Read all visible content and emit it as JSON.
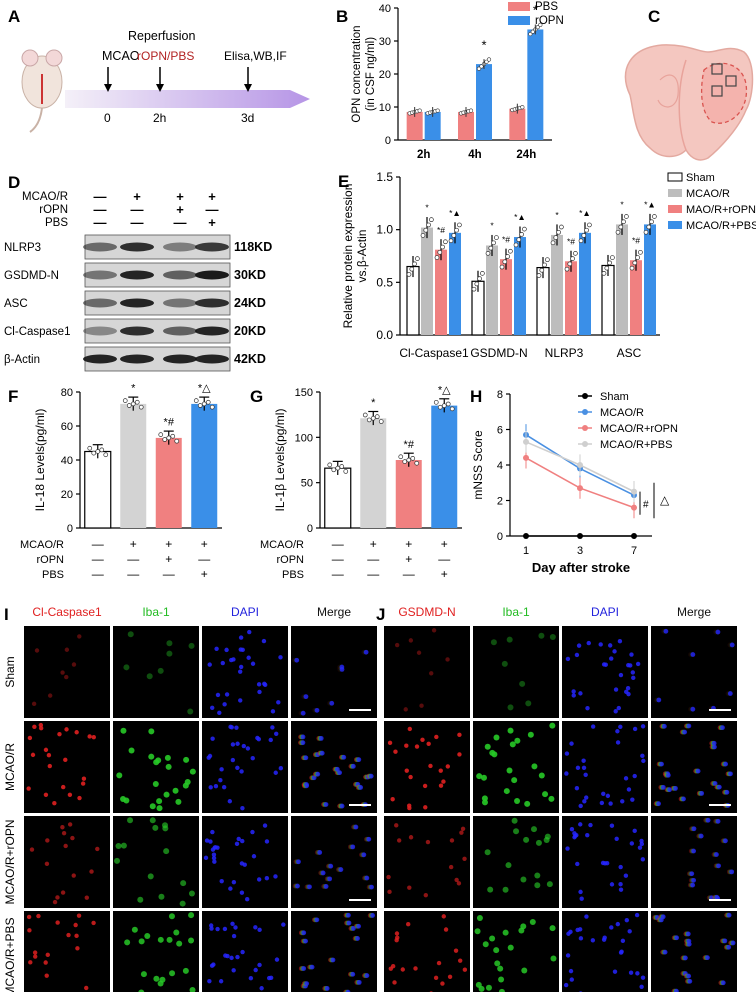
{
  "panels": {
    "A": {
      "label": "A",
      "reperfusion": "Reperfusion",
      "mcao": "MCAO",
      "treatment": "rOPN/PBS",
      "assays": "Elisa,WB,IF",
      "t0": "0",
      "t1": "2h",
      "t2": "3d"
    },
    "B": {
      "label": "B"
    },
    "C": {
      "label": "C"
    },
    "D": {
      "label": "D",
      "row_labels": [
        "MCAO/R",
        "rOPN",
        "PBS"
      ],
      "signs": [
        [
          "—",
          "+",
          "+",
          "+"
        ],
        [
          "—",
          "—",
          "+",
          "—"
        ],
        [
          "—",
          "—",
          "—",
          "+"
        ]
      ],
      "bands": [
        {
          "name": "NLRP3",
          "kd": "118KD"
        },
        {
          "name": "GSDMD-N",
          "kd": "30KD"
        },
        {
          "name": "ASC",
          "kd": "24KD"
        },
        {
          "name": "Cl-Caspase1",
          "kd": "20KD"
        },
        {
          "name": "β-Actin",
          "kd": "42KD"
        }
      ]
    },
    "E": {
      "label": "E"
    },
    "F": {
      "label": "F"
    },
    "G": {
      "label": "G"
    },
    "H": {
      "label": "H"
    },
    "I": {
      "label": "I",
      "headers": [
        "Cl-Caspase1",
        "Iba-1",
        "DAPI",
        "Merge"
      ],
      "header_colors": [
        "#e02020",
        "#22bb22",
        "#2222dd",
        "#111111"
      ],
      "rows": [
        "Sham",
        "MCAO/R",
        "MCAO/R+rOPN",
        "MCAO/R+PBS"
      ]
    },
    "J": {
      "label": "J",
      "headers": [
        "GSDMD-N",
        "Iba-1",
        "DAPI",
        "Merge"
      ],
      "header_colors": [
        "#e02020",
        "#22bb22",
        "#2222dd",
        "#111111"
      ]
    }
  },
  "chart_data": [
    {
      "id": "B",
      "type": "bar",
      "ylabel": "OPN concentration\n(in CSF ng/ml)",
      "categories": [
        "2h",
        "4h",
        "24h"
      ],
      "yticks": [
        0,
        10,
        20,
        30,
        40
      ],
      "ylim": [
        0,
        40
      ],
      "legend": "top-right",
      "series": [
        {
          "name": "PBS",
          "color": "#f08080",
          "values": [
            8.5,
            8.5,
            9.5
          ]
        },
        {
          "name": "rOPN",
          "color": "#3a8fe8",
          "values": [
            8.5,
            23.0,
            33.5
          ]
        }
      ],
      "annotations": [
        {
          "category": "4h",
          "series": "rOPN",
          "text": "*"
        },
        {
          "category": "24h",
          "series": "rOPN",
          "text": "*"
        }
      ]
    },
    {
      "id": "E",
      "type": "bar",
      "ylabel": "Relative protein expression\nvs.β-Actin",
      "categories": [
        "Cl-Caspase1",
        "GSDMD-N",
        "NLRP3",
        "ASC"
      ],
      "yticks": [
        0.0,
        0.5,
        1.0,
        1.5
      ],
      "ylim": [
        0,
        1.5
      ],
      "legend": "top-right",
      "series": [
        {
          "name": "Sham",
          "color": "#ffffff",
          "values": [
            0.65,
            0.51,
            0.64,
            0.66
          ]
        },
        {
          "name": "MCAO/R",
          "color": "#bdbdbd",
          "values": [
            1.02,
            0.85,
            0.95,
            1.05
          ]
        },
        {
          "name": "MAO/R+rOPN",
          "color": "#f08080",
          "values": [
            0.81,
            0.72,
            0.7,
            0.71
          ]
        },
        {
          "name": "MCAO/R+PBS",
          "color": "#3a8fe8",
          "values": [
            0.97,
            0.93,
            0.97,
            1.05
          ]
        }
      ],
      "annotation_marks": [
        "*",
        "*#",
        "*▲"
      ]
    },
    {
      "id": "F",
      "type": "bar",
      "ylabel": "IL-18 Levels(pg/ml)",
      "yticks": [
        0,
        20,
        40,
        60,
        80
      ],
      "ylim": [
        0,
        80
      ],
      "values": [
        45,
        73,
        53,
        73
      ],
      "colors": [
        "#ffffff",
        "#d3d3d3",
        "#f08080",
        "#3a8fe8"
      ],
      "marks": [
        "",
        "*",
        "*#",
        "*△"
      ],
      "rows": [
        {
          "label": "MCAO/R",
          "signs": [
            "—",
            "+",
            "+",
            "+"
          ]
        },
        {
          "label": "rOPN",
          "signs": [
            "—",
            "—",
            "+",
            "—"
          ]
        },
        {
          "label": "PBS",
          "signs": [
            "—",
            "—",
            "—",
            "+"
          ]
        }
      ]
    },
    {
      "id": "G",
      "type": "bar",
      "ylabel": "IL-1β Levels(pg/ml)",
      "yticks": [
        0,
        50,
        100,
        150
      ],
      "ylim": [
        0,
        150
      ],
      "values": [
        66,
        121,
        75,
        135
      ],
      "colors": [
        "#ffffff",
        "#d3d3d3",
        "#f08080",
        "#3a8fe8"
      ],
      "marks": [
        "",
        "*",
        "*#",
        "*△"
      ],
      "rows": [
        {
          "label": "MCAO/R",
          "signs": [
            "—",
            "+",
            "+",
            "+"
          ]
        },
        {
          "label": "rOPN",
          "signs": [
            "—",
            "—",
            "+",
            "—"
          ]
        },
        {
          "label": "PBS",
          "signs": [
            "—",
            "—",
            "—",
            "+"
          ]
        }
      ]
    },
    {
      "id": "H",
      "type": "line",
      "ylabel": "mNSS Score",
      "xlabel": "Day after stroke",
      "x": [
        "1",
        "3",
        "7"
      ],
      "yticks": [
        0,
        2,
        4,
        6,
        8
      ],
      "ylim": [
        0,
        8
      ],
      "legend": "top-right",
      "series": [
        {
          "name": "Sham",
          "color": "#000000",
          "values": [
            0,
            0,
            0
          ]
        },
        {
          "name": "MCAO/R",
          "color": "#4a90e2",
          "values": [
            5.7,
            3.8,
            2.3
          ]
        },
        {
          "name": "MCAO/R+rOPN",
          "color": "#f08080",
          "values": [
            4.4,
            2.7,
            1.6
          ]
        },
        {
          "name": "MCAO/R+PBS",
          "color": "#cfcfcf",
          "values": [
            5.3,
            4.0,
            2.5
          ]
        }
      ],
      "marks": [
        "#",
        "△"
      ]
    }
  ]
}
